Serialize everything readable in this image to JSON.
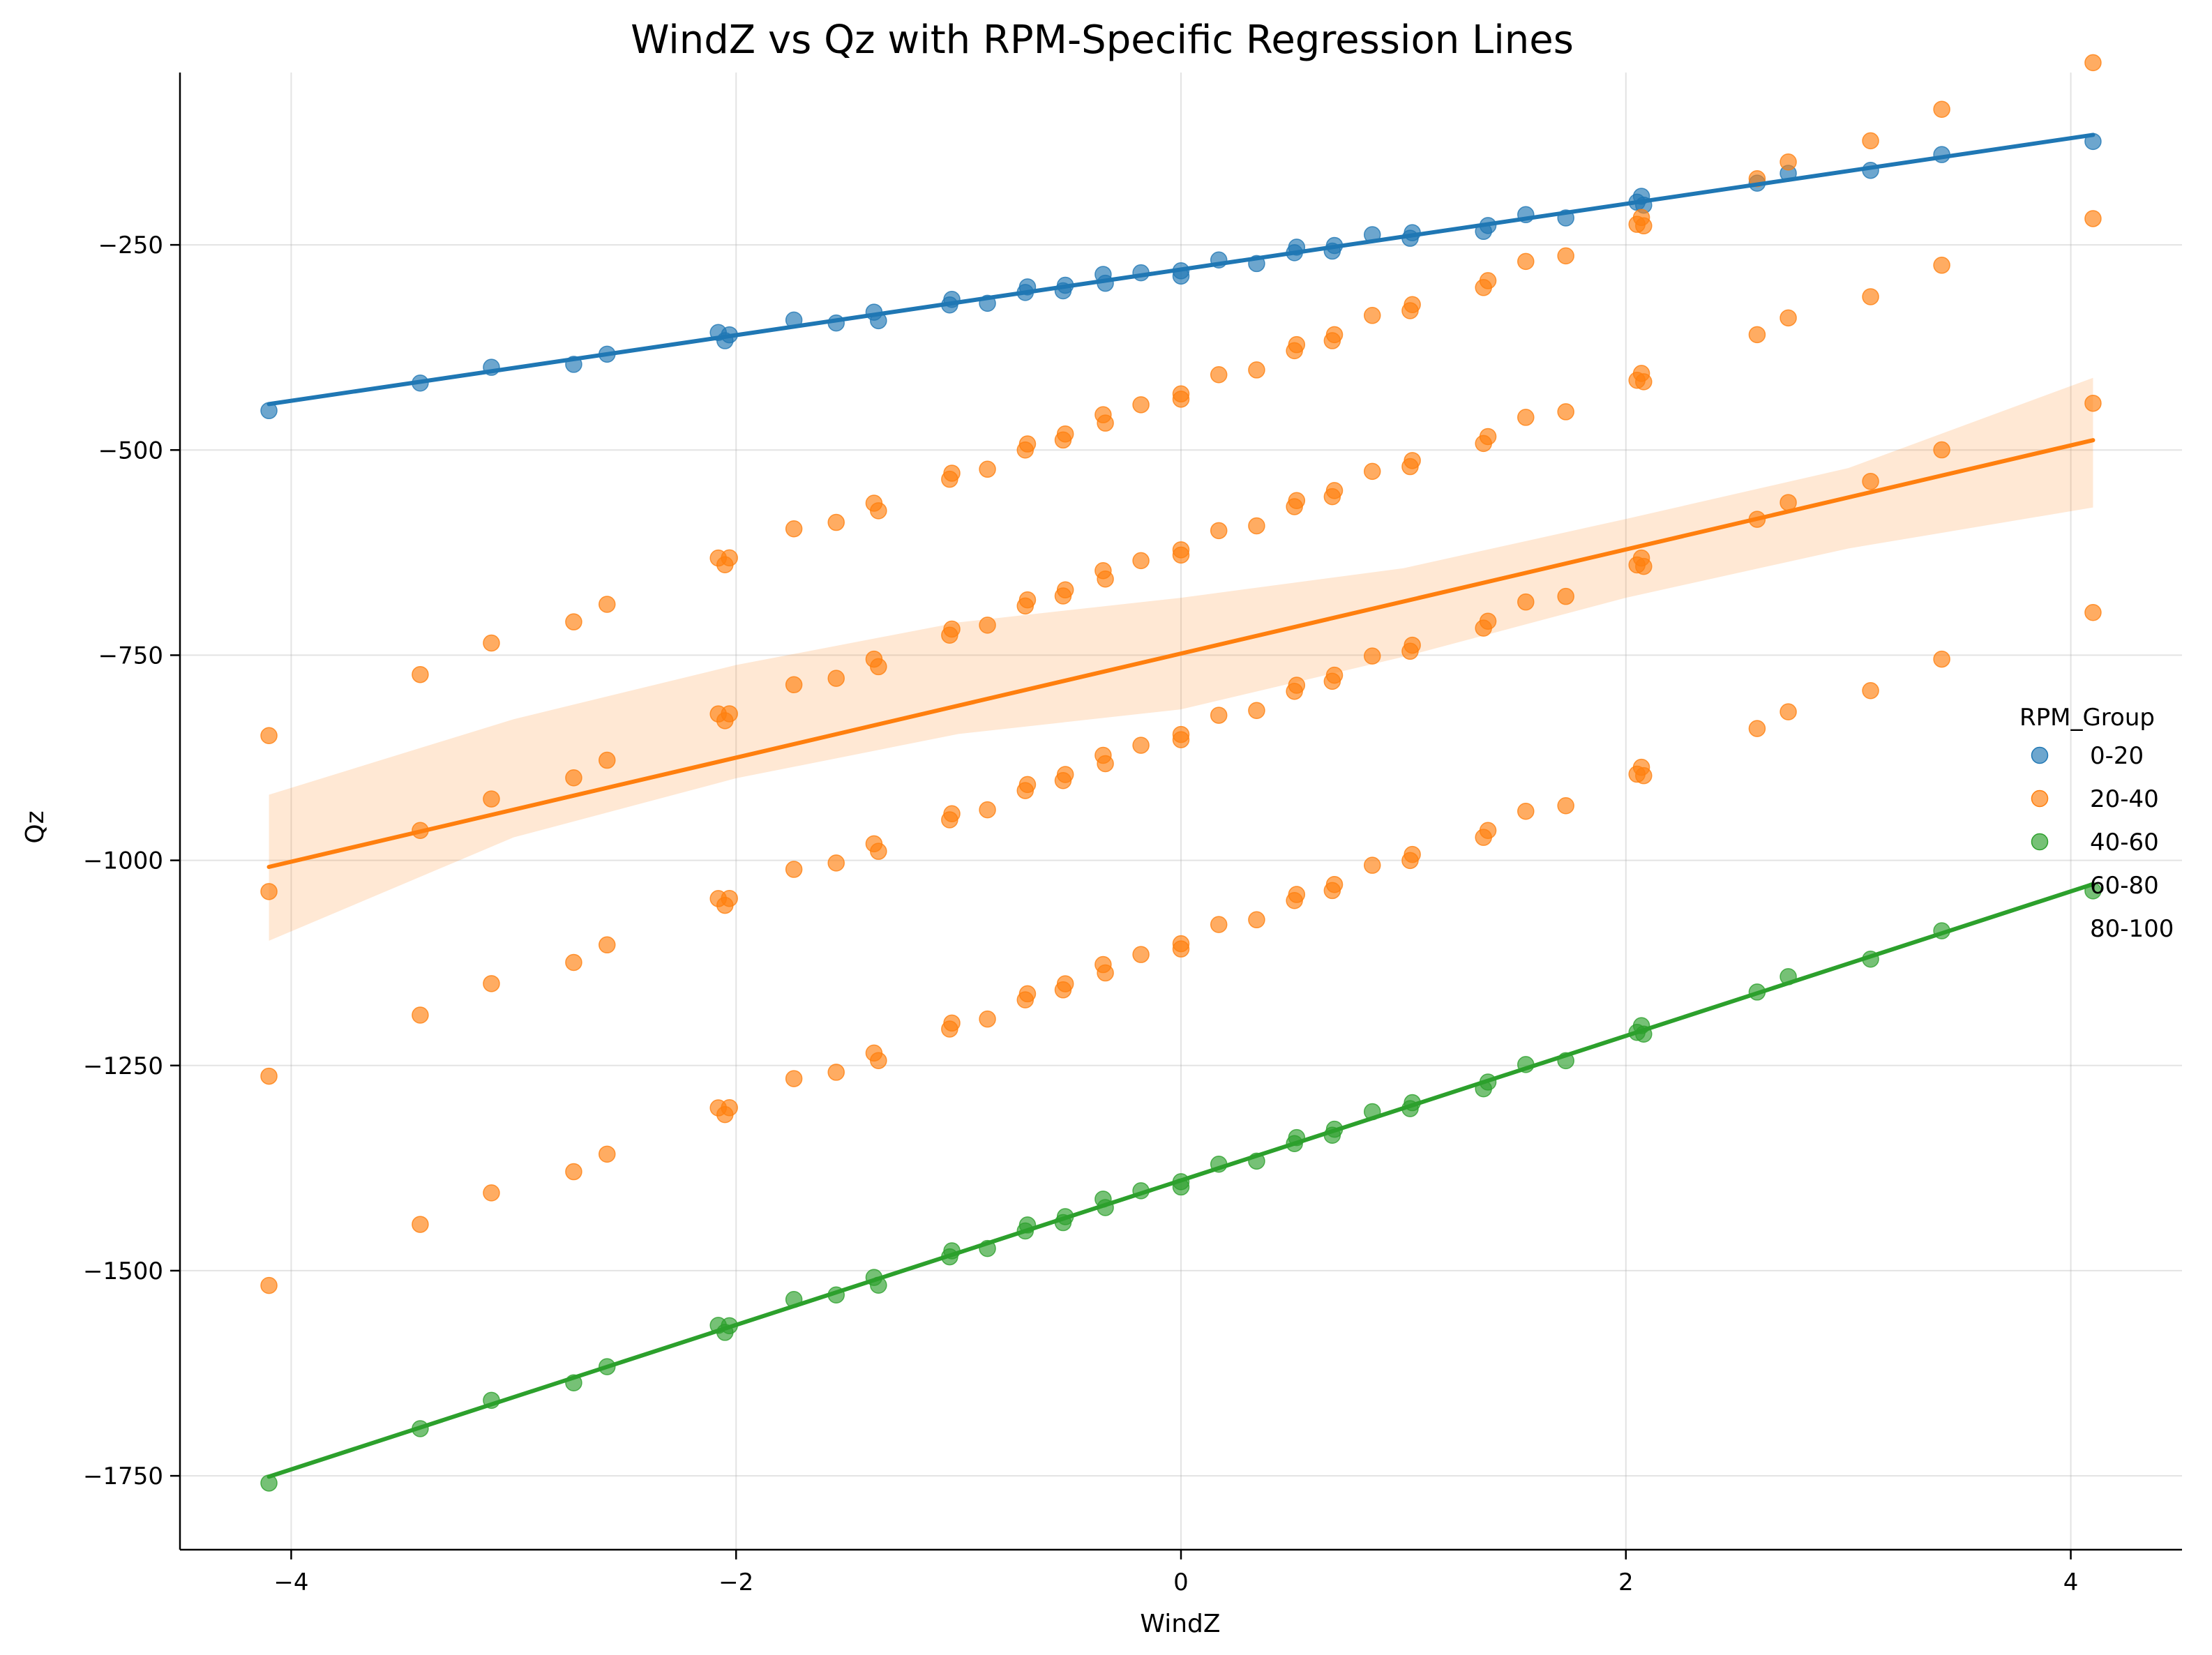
{
  "chart_data": {
    "type": "scatter",
    "title": "WindZ vs Qz with RPM-Specific Regression Lines",
    "xlabel": "WindZ",
    "ylabel": "Qz",
    "xlim": [
      -4.5,
      4.5
    ],
    "ylim": [
      -1840,
      -40
    ],
    "xticks": [
      -4,
      -2,
      0,
      2,
      4
    ],
    "xtick_labels": [
      "−4",
      "−2",
      "0",
      "2",
      "4"
    ],
    "yticks": [
      -1750,
      -1500,
      -1250,
      -1000,
      -750,
      -500,
      -250
    ],
    "ytick_labels": [
      "−1750",
      "−1500",
      "−1250",
      "−1000",
      "−750",
      "−500",
      "−250"
    ],
    "grid": true,
    "legend_title": "RPM_Group",
    "legend_position": "center-right",
    "windz_values": [
      -4.1,
      -3.42,
      -3.1,
      -2.73,
      -2.58,
      -2.08,
      -2.05,
      -2.03,
      -1.74,
      -1.55,
      -1.38,
      -1.36,
      -1.04,
      -1.03,
      -0.87,
      -0.7,
      -0.69,
      -0.53,
      -0.52,
      -0.35,
      -0.34,
      -0.18,
      0.0,
      0.0,
      0.17,
      0.34,
      0.51,
      0.52,
      0.68,
      0.69,
      0.86,
      1.03,
      1.04,
      1.36,
      1.38,
      1.55,
      1.73,
      2.05,
      2.07,
      2.08,
      2.59,
      2.73,
      3.1,
      3.42,
      4.1
    ],
    "series": [
      {
        "name": "0-20",
        "color": "#1f77b4",
        "slope": 40,
        "intercept": -280,
        "offsets": [
          0
        ],
        "fit": [
          [
            -4.1,
            -444
          ],
          [
            4.1,
            -116
          ]
        ]
      },
      {
        "name": "20-40",
        "color": "#ff7f0e",
        "slope": 100,
        "intercept": -430,
        "offsets": [
          0,
          -190,
          -415,
          -670
        ],
        "fit": [
          [
            -4.1,
            -1008
          ],
          [
            4.1,
            -488
          ]
        ],
        "ci_upper": [
          [
            -4.1,
            -920
          ],
          [
            -3,
            -828
          ],
          [
            -2,
            -762
          ],
          [
            -1,
            -710
          ],
          [
            0,
            -680
          ],
          [
            1,
            -644
          ],
          [
            2,
            -584
          ],
          [
            3,
            -522
          ],
          [
            4.1,
            -412
          ]
        ],
        "ci_lower": [
          [
            -4.1,
            -1098
          ],
          [
            -3,
            -972
          ],
          [
            -2,
            -900
          ],
          [
            -1,
            -846
          ],
          [
            0,
            -816
          ],
          [
            1,
            -752
          ],
          [
            2,
            -680
          ],
          [
            3,
            -620
          ],
          [
            4.1,
            -570
          ]
        ]
      },
      {
        "name": "40-60",
        "color": "#2ca02c",
        "slope": 88,
        "intercept": -1390,
        "offsets": [
          0
        ],
        "fit": [
          [
            -4.1,
            -1751
          ],
          [
            4.1,
            -1029
          ]
        ]
      },
      {
        "name": "60-80",
        "color": "#d62728",
        "offsets": []
      },
      {
        "name": "80-100",
        "color": "#9467bd",
        "offsets": []
      }
    ]
  }
}
